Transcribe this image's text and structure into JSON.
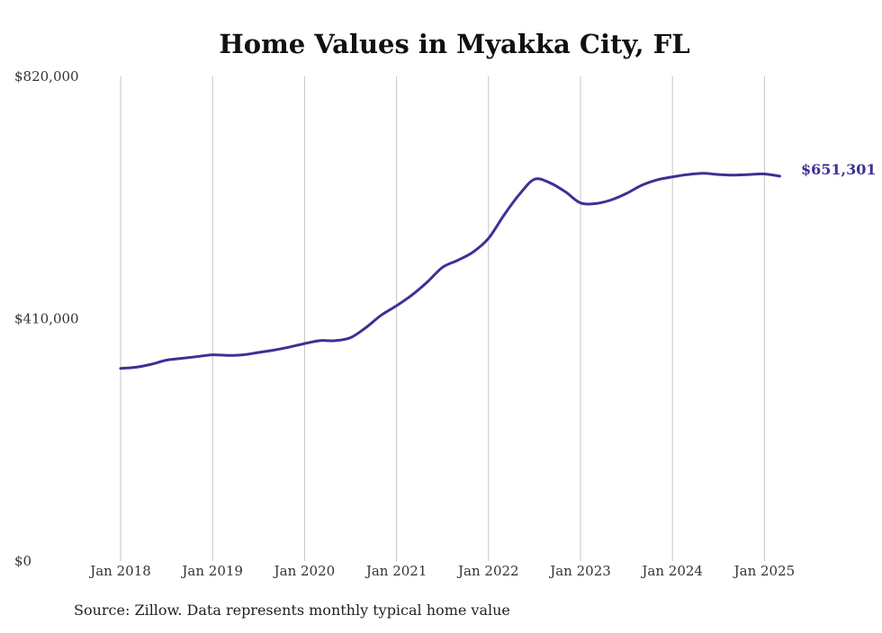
{
  "chart_data": {
    "type": "line",
    "title": "Home Values in Myakka City, FL",
    "xlabel": "",
    "ylabel": "",
    "ylim": [
      0,
      820000
    ],
    "y_ticks": [
      {
        "value": 0,
        "label": "$0"
      },
      {
        "value": 410000,
        "label": "$410,000"
      },
      {
        "value": 820000,
        "label": "$820,000"
      }
    ],
    "x_ticks": [
      {
        "value": "2018-01",
        "label": "Jan 2018"
      },
      {
        "value": "2019-01",
        "label": "Jan 2019"
      },
      {
        "value": "2020-01",
        "label": "Jan 2020"
      },
      {
        "value": "2021-01",
        "label": "Jan 2021"
      },
      {
        "value": "2022-01",
        "label": "Jan 2022"
      },
      {
        "value": "2023-01",
        "label": "Jan 2023"
      },
      {
        "value": "2024-01",
        "label": "Jan 2024"
      },
      {
        "value": "2025-01",
        "label": "Jan 2025"
      }
    ],
    "grid": "vertical",
    "series": [
      {
        "color": "#3b3195",
        "points": [
          [
            "2018-01",
            326000
          ],
          [
            "2018-03",
            328000
          ],
          [
            "2018-05",
            333000
          ],
          [
            "2018-07",
            340000
          ],
          [
            "2018-09",
            343000
          ],
          [
            "2018-11",
            346000
          ],
          [
            "2019-01",
            349000
          ],
          [
            "2019-03",
            348000
          ],
          [
            "2019-05",
            349000
          ],
          [
            "2019-07",
            353000
          ],
          [
            "2019-09",
            357000
          ],
          [
            "2019-11",
            362000
          ],
          [
            "2020-01",
            368000
          ],
          [
            "2020-03",
            373000
          ],
          [
            "2020-05",
            373000
          ],
          [
            "2020-07",
            378000
          ],
          [
            "2020-09",
            395000
          ],
          [
            "2020-11",
            416000
          ],
          [
            "2021-01",
            432000
          ],
          [
            "2021-03",
            450000
          ],
          [
            "2021-05",
            472000
          ],
          [
            "2021-07",
            497000
          ],
          [
            "2021-09",
            509000
          ],
          [
            "2021-11",
            523000
          ],
          [
            "2022-01",
            546000
          ],
          [
            "2022-03",
            585000
          ],
          [
            "2022-05",
            620000
          ],
          [
            "2022-07",
            646000
          ],
          [
            "2022-09",
            640000
          ],
          [
            "2022-11",
            625000
          ],
          [
            "2023-01",
            606000
          ],
          [
            "2023-03",
            605000
          ],
          [
            "2023-05",
            611000
          ],
          [
            "2023-07",
            622000
          ],
          [
            "2023-09",
            636000
          ],
          [
            "2023-11",
            645000
          ],
          [
            "2024-01",
            650000
          ],
          [
            "2024-03",
            654000
          ],
          [
            "2024-05",
            656000
          ],
          [
            "2024-07",
            654000
          ],
          [
            "2024-09",
            653000
          ],
          [
            "2024-11",
            654000
          ],
          [
            "2025-01",
            655000
          ],
          [
            "2025-03",
            651301
          ]
        ]
      }
    ],
    "end_label": "$651,301",
    "source": "Source: Zillow. Data represents monthly typical home value"
  }
}
